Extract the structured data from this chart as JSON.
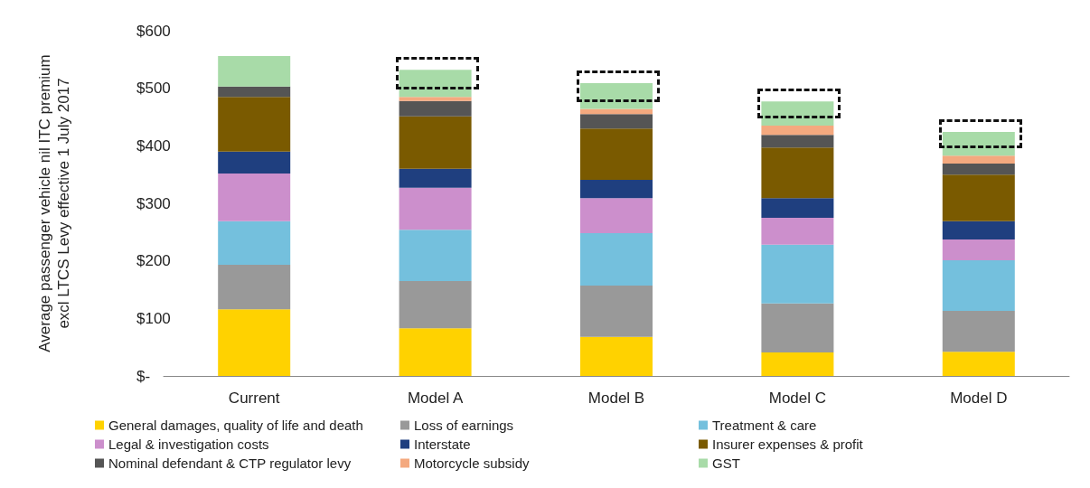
{
  "chart_data": {
    "type": "bar",
    "stacked": true,
    "ylabel": "Average passenger vehicle nil ITC premium\nexcl LTCS Levy effective 1 July 2017",
    "categories": [
      "Current",
      "Model A",
      "Model B",
      "Model C",
      "Model D"
    ],
    "series": [
      {
        "name": "General damages, quality of life and death",
        "color": "#ffd200",
        "values": [
          116,
          83,
          68,
          41,
          42
        ]
      },
      {
        "name": "Loss of earnings",
        "color": "#999999",
        "values": [
          77,
          82,
          89,
          85,
          71
        ]
      },
      {
        "name": "Treatment & care",
        "color": "#74c0dd",
        "values": [
          76,
          89,
          91,
          102,
          88
        ]
      },
      {
        "name": "Legal & investigation costs",
        "color": "#cc8fcc",
        "values": [
          83,
          73,
          61,
          47,
          36
        ]
      },
      {
        "name": "Interstate",
        "color": "#1f3f7f",
        "values": [
          38,
          33,
          32,
          34,
          32
        ]
      },
      {
        "name": "Insurer expenses & profit",
        "color": "#7a5a00",
        "values": [
          95,
          91,
          89,
          88,
          81
        ]
      },
      {
        "name": "Nominal defendant & CTP regulator levy",
        "color": "#555555",
        "values": [
          18,
          27,
          25,
          22,
          19
        ]
      },
      {
        "name": "Motorcycle subsidy",
        "color": "#f4a97f",
        "values": [
          0,
          7,
          9,
          16,
          14
        ]
      },
      {
        "name": "GST",
        "color": "#a8dba8",
        "values": [
          53,
          47,
          45,
          42,
          41
        ]
      }
    ],
    "ylim": [
      0,
      600
    ],
    "yticks": [
      {
        "value": 0,
        "label": "$-"
      },
      {
        "value": 100,
        "label": "$100"
      },
      {
        "value": 200,
        "label": "$200"
      },
      {
        "value": 300,
        "label": "$300"
      },
      {
        "value": 400,
        "label": "$400"
      },
      {
        "value": 500,
        "label": "$500"
      },
      {
        "value": 600,
        "label": "$600"
      }
    ],
    "grid": false,
    "legend": "bottom"
  }
}
